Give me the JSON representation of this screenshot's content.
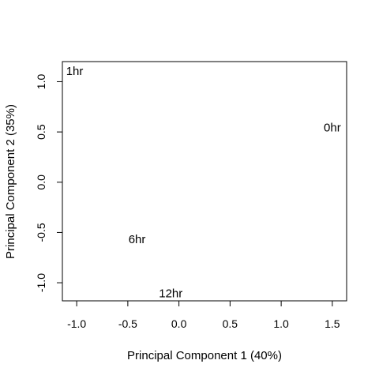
{
  "chart_data": {
    "type": "scatter",
    "xlabel": "Principal Component 1 (40%)",
    "ylabel": "Principal Component 2 (35%)",
    "xlim": [
      -1.14,
      1.64
    ],
    "ylim": [
      -1.18,
      1.2
    ],
    "xticks": [
      -1.0,
      -0.5,
      0.0,
      0.5,
      1.0,
      1.5
    ],
    "xtick_labels": [
      "-1.0",
      "-0.5",
      "0.0",
      "0.5",
      "1.0",
      "1.5"
    ],
    "yticks": [
      -1.0,
      -0.5,
      0.0,
      0.5,
      1.0
    ],
    "ytick_labels": [
      "-1.0",
      "-0.5",
      "0.0",
      "0.5",
      "1.0"
    ],
    "grid": false,
    "box": true,
    "points": [
      {
        "label": "1hr",
        "x": -1.02,
        "y": 1.1
      },
      {
        "label": "0hr",
        "x": 1.5,
        "y": 0.54
      },
      {
        "label": "6hr",
        "x": -0.41,
        "y": -0.57
      },
      {
        "label": "12hr",
        "x": -0.08,
        "y": -1.11
      }
    ]
  }
}
